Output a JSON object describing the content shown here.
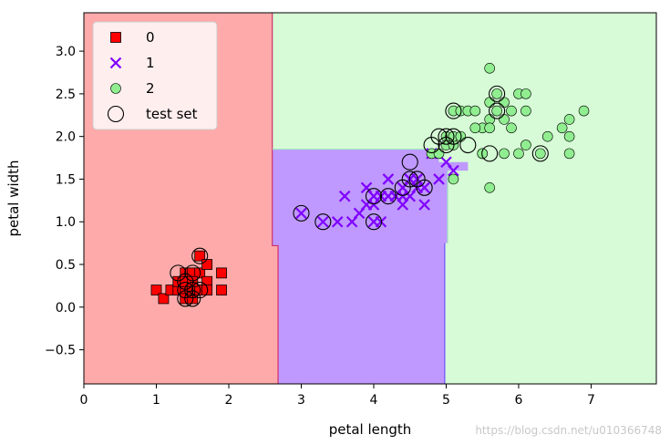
{
  "chart_data": {
    "type": "scatter",
    "title": "",
    "xlabel": "petal length",
    "ylabel": "petal width",
    "xlim": [
      0,
      7.9
    ],
    "ylim": [
      -0.9,
      3.45
    ],
    "xticks": [
      0,
      1,
      2,
      3,
      4,
      5,
      6,
      7
    ],
    "yticks": [
      -0.5,
      0.0,
      0.5,
      1.0,
      1.5,
      2.0,
      2.5,
      3.0
    ],
    "ytick_labels": [
      "−0.5",
      "0.0",
      "0.5",
      "1.0",
      "1.5",
      "2.0",
      "2.5",
      "3.0"
    ],
    "grid": false,
    "legend_position": "upper-left",
    "legend": [
      {
        "label": "0",
        "marker": "square",
        "color": "#ff0000"
      },
      {
        "label": "1",
        "marker": "x",
        "color": "#7f00ff"
      },
      {
        "label": "2",
        "marker": "circle",
        "color": "#90ee90"
      },
      {
        "label": "test set",
        "marker": "open-circle",
        "color": "#000000"
      }
    ],
    "decision_regions": [
      {
        "class": "0",
        "color": "#ffaaaa"
      },
      {
        "class": "1",
        "color": "#bf99ff"
      },
      {
        "class": "2",
        "color": "#d6fbd6"
      }
    ],
    "series": [
      {
        "name": "0",
        "marker": "square",
        "color": "#ff0000",
        "x": [
          1.0,
          1.1,
          1.2,
          1.3,
          1.3,
          1.4,
          1.4,
          1.4,
          1.4,
          1.5,
          1.5,
          1.5,
          1.5,
          1.5,
          1.6,
          1.6,
          1.6,
          1.6,
          1.7,
          1.7,
          1.7,
          1.9,
          1.9,
          1.4,
          1.5
        ],
        "y": [
          0.2,
          0.1,
          0.2,
          0.2,
          0.3,
          0.2,
          0.1,
          0.3,
          0.4,
          0.2,
          0.1,
          0.3,
          0.4,
          0.2,
          0.2,
          0.4,
          0.6,
          0.2,
          0.3,
          0.5,
          0.2,
          0.4,
          0.2,
          0.3,
          0.3
        ]
      },
      {
        "name": "1",
        "marker": "x",
        "color": "#7f00ff",
        "x": [
          3.0,
          3.3,
          3.5,
          3.6,
          3.7,
          3.8,
          3.9,
          3.9,
          4.0,
          4.0,
          4.1,
          4.1,
          4.2,
          4.2,
          4.3,
          4.4,
          4.4,
          4.5,
          4.5,
          4.6,
          4.6,
          4.7,
          4.7,
          4.8,
          4.9,
          5.0,
          5.1,
          4.0,
          4.4
        ],
        "y": [
          1.1,
          1.0,
          1.0,
          1.3,
          1.0,
          1.1,
          1.4,
          1.2,
          1.3,
          1.0,
          1.3,
          1.0,
          1.3,
          1.5,
          1.3,
          1.4,
          1.2,
          1.5,
          1.3,
          1.5,
          1.4,
          1.4,
          1.2,
          1.8,
          1.5,
          1.7,
          1.6,
          1.2,
          1.3
        ]
      },
      {
        "name": "2",
        "marker": "circle",
        "color": "#90ee90",
        "x": [
          4.8,
          4.9,
          5.0,
          5.0,
          5.1,
          5.1,
          5.1,
          5.2,
          5.3,
          5.4,
          5.5,
          5.5,
          5.6,
          5.6,
          5.6,
          5.7,
          5.8,
          5.8,
          5.9,
          6.0,
          6.0,
          6.1,
          6.1,
          6.3,
          6.4,
          6.6,
          6.7,
          6.7,
          6.9,
          5.6,
          5.7,
          5.8,
          5.6,
          5.1,
          5.5,
          5.9,
          6.1,
          6.7,
          5.4,
          5.2
        ],
        "y": [
          1.8,
          1.8,
          2.0,
          1.9,
          2.3,
          1.9,
          2.0,
          2.3,
          2.3,
          2.3,
          2.1,
          1.8,
          2.4,
          2.2,
          1.4,
          2.5,
          2.2,
          1.8,
          2.3,
          2.5,
          1.8,
          2.3,
          1.9,
          1.8,
          2.0,
          2.1,
          2.2,
          2.0,
          2.3,
          2.1,
          2.3,
          2.4,
          2.8,
          1.5,
          1.8,
          2.1,
          2.5,
          1.8,
          2.1,
          2.0
        ]
      },
      {
        "name": "test set",
        "marker": "open-circle",
        "color": "#000000",
        "x": [
          1.3,
          1.4,
          1.4,
          1.5,
          1.5,
          1.6,
          1.6,
          1.5,
          1.4,
          3.0,
          3.3,
          4.0,
          4.0,
          4.2,
          4.5,
          4.5,
          4.6,
          4.7,
          4.4,
          4.9,
          5.0,
          5.1,
          5.1,
          5.3,
          5.6,
          5.7,
          6.3,
          5.0,
          4.8,
          5.7
        ],
        "y": [
          0.4,
          0.1,
          0.3,
          0.2,
          0.4,
          0.6,
          0.2,
          0.1,
          0.2,
          1.1,
          1.0,
          1.0,
          1.3,
          1.3,
          1.5,
          1.7,
          1.5,
          1.4,
          1.4,
          2.0,
          1.9,
          2.0,
          2.3,
          1.9,
          1.8,
          2.5,
          1.8,
          2.0,
          1.9,
          2.3
        ]
      }
    ]
  },
  "watermark": "https://blog.csdn.net/u010366748"
}
